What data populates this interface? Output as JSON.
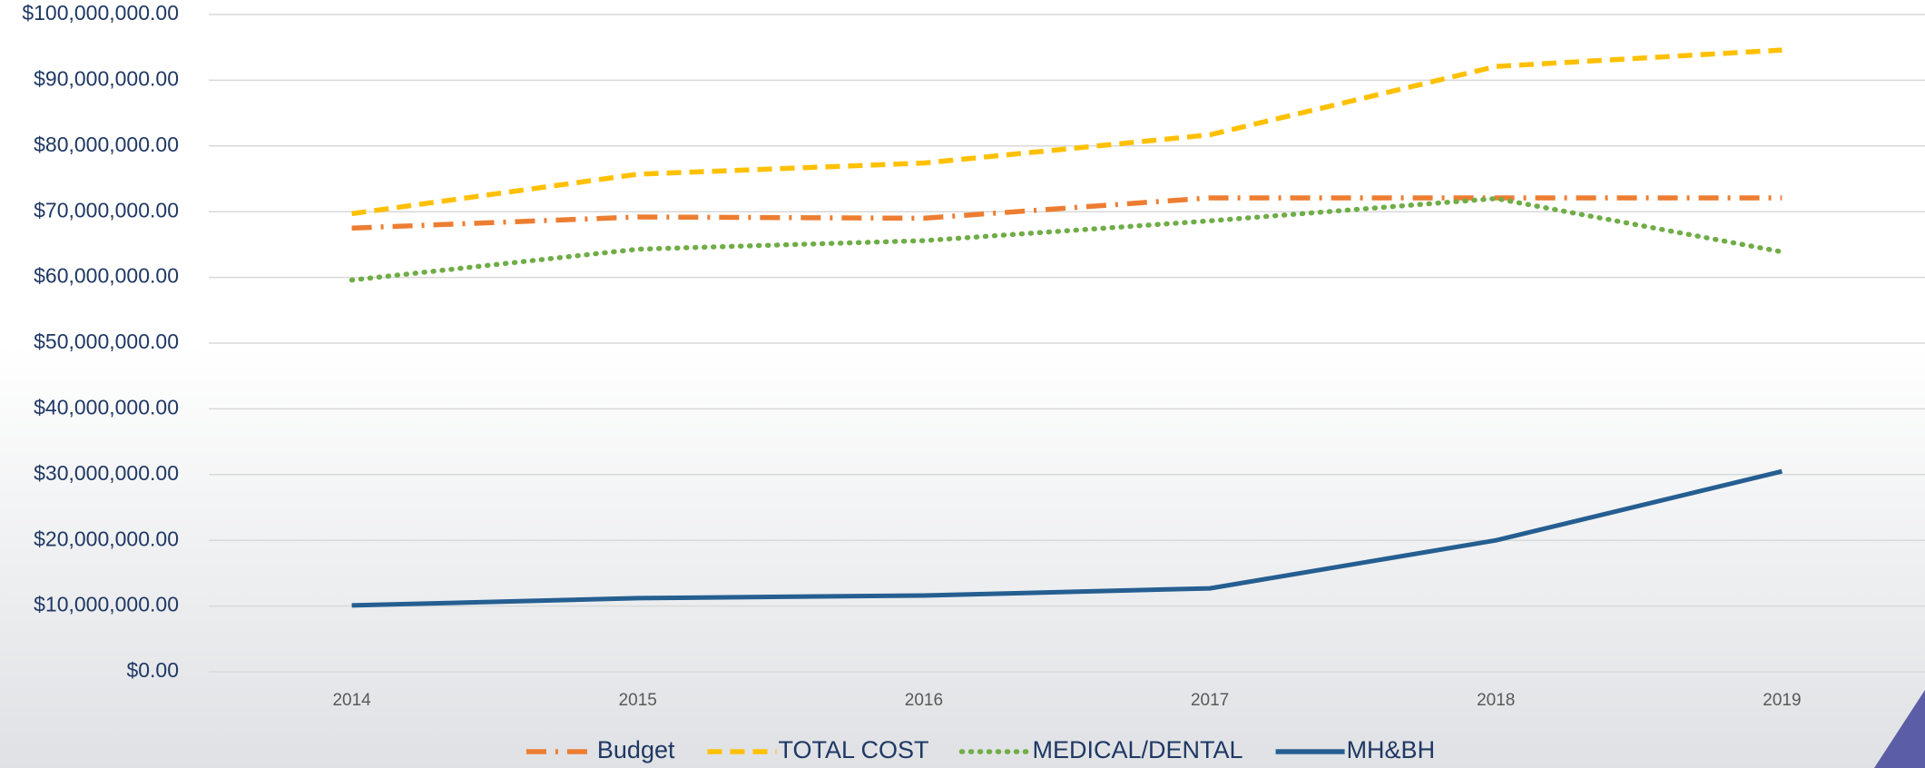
{
  "chart_data": {
    "type": "line",
    "x": [
      2014,
      2015,
      2016,
      2017,
      2018,
      2019
    ],
    "xlim": [
      2013.5,
      2019.5
    ],
    "series": [
      {
        "name": "Budget",
        "color": "#ED7D31",
        "style": "dash-dot",
        "values": [
          67500000,
          69200000,
          69000000,
          72100000,
          72100000,
          72100000
        ]
      },
      {
        "name": "TOTAL COST",
        "color": "#FFC000",
        "style": "dashed",
        "values": [
          69700000,
          75700000,
          77400000,
          81700000,
          92100000,
          94600000
        ]
      },
      {
        "name": "MEDICAL/DENTAL",
        "color": "#70AD47",
        "style": "dotted",
        "values": [
          59600000,
          64300000,
          65600000,
          68600000,
          72000000,
          63900000
        ]
      },
      {
        "name": "MH&BH",
        "color": "#255E91",
        "style": "solid",
        "values": [
          10100000,
          11200000,
          11600000,
          12700000,
          20000000,
          30500000
        ]
      }
    ],
    "ylim": [
      0,
      100000000
    ],
    "yticks": [
      {
        "value": 0,
        "label": "$0.00"
      },
      {
        "value": 10000000,
        "label": "$10,000,000.00"
      },
      {
        "value": 20000000,
        "label": "$20,000,000.00"
      },
      {
        "value": 30000000,
        "label": "$30,000,000.00"
      },
      {
        "value": 40000000,
        "label": "$40,000,000.00"
      },
      {
        "value": 50000000,
        "label": "$50,000,000.00"
      },
      {
        "value": 60000000,
        "label": "$60,000,000.00"
      },
      {
        "value": 70000000,
        "label": "$70,000,000.00"
      },
      {
        "value": 80000000,
        "label": "$80,000,000.00"
      },
      {
        "value": 90000000,
        "label": "$90,000,000.00"
      },
      {
        "value": 100000000,
        "label": "$100,000,000.00"
      }
    ],
    "grid": true,
    "legend": "bottom"
  }
}
